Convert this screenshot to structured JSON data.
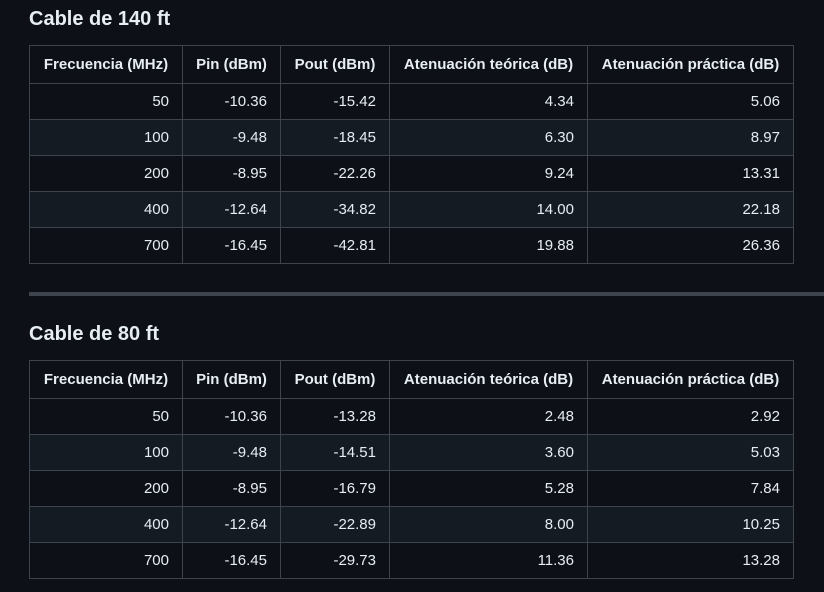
{
  "headers": [
    "Frecuencia (MHz)",
    "Pin (dBm)",
    "Pout (dBm)",
    "Atenuación teórica (dB)",
    "Atenuación práctica (dB)"
  ],
  "tables": [
    {
      "title": "Cable de 140 ft",
      "rows": [
        [
          "50",
          "-10.36",
          "-15.42",
          "4.34",
          "5.06"
        ],
        [
          "100",
          "-9.48",
          "-18.45",
          "6.30",
          "8.97"
        ],
        [
          "200",
          "-8.95",
          "-22.26",
          "9.24",
          "13.31"
        ],
        [
          "400",
          "-12.64",
          "-34.82",
          "14.00",
          "22.18"
        ],
        [
          "700",
          "-16.45",
          "-42.81",
          "19.88",
          "26.36"
        ]
      ]
    },
    {
      "title": "Cable de 80 ft",
      "rows": [
        [
          "50",
          "-10.36",
          "-13.28",
          "2.48",
          "2.92"
        ],
        [
          "100",
          "-9.48",
          "-14.51",
          "3.60",
          "5.03"
        ],
        [
          "200",
          "-8.95",
          "-16.79",
          "5.28",
          "7.84"
        ],
        [
          "400",
          "-12.64",
          "-22.89",
          "8.00",
          "10.25"
        ],
        [
          "700",
          "-16.45",
          "-29.73",
          "11.36",
          "13.28"
        ]
      ]
    }
  ]
}
